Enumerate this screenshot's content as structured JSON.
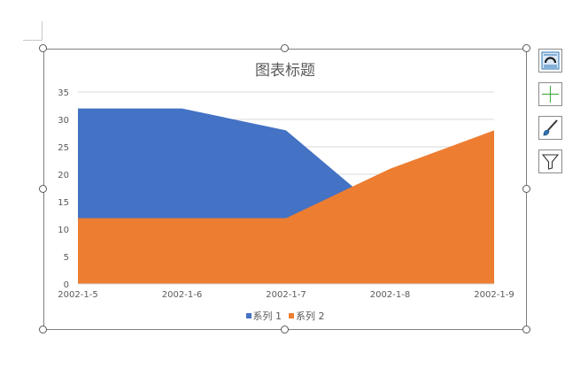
{
  "chart_data": {
    "type": "area",
    "title": "图表标题",
    "categories": [
      "2002-1-5",
      "2002-1-6",
      "2002-1-7",
      "2002-1-8",
      "2002-1-9"
    ],
    "series": [
      {
        "name": "系列 1",
        "values": [
          32,
          32,
          28,
          12,
          21
        ],
        "color": "#4472C4"
      },
      {
        "name": "系列 2",
        "values": [
          12,
          12,
          12,
          21,
          28
        ],
        "color": "#ED7D31"
      }
    ],
    "ylim": [
      0,
      35
    ],
    "yticks": [
      0,
      5,
      10,
      15,
      20,
      25,
      30,
      35
    ],
    "grid": true,
    "legend": "bottom"
  },
  "side_buttons": [
    {
      "name": "chart-layout-button",
      "icon": "chart-layout-icon"
    },
    {
      "name": "chart-elements-button",
      "icon": "plus-icon"
    },
    {
      "name": "chart-styles-button",
      "icon": "paintbrush-icon"
    },
    {
      "name": "chart-filters-button",
      "icon": "funnel-icon"
    }
  ]
}
